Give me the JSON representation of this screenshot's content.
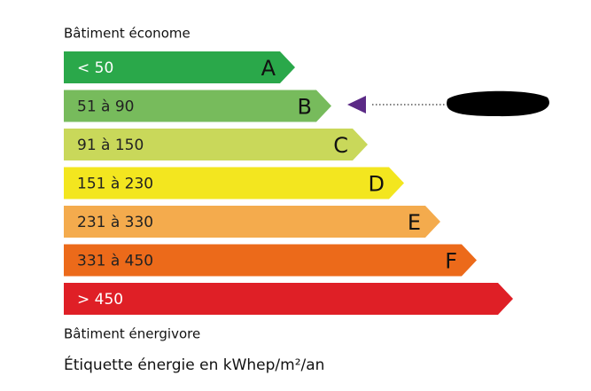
{
  "header": {
    "title": "Bâtiment économe"
  },
  "bands": [
    {
      "range": "< 50",
      "letter": "A",
      "color": "#2aa84a"
    },
    {
      "range": "51 à 90",
      "letter": "B",
      "color": "#77bb5c"
    },
    {
      "range": "91 à 150",
      "letter": "C",
      "color": "#c9d85a"
    },
    {
      "range": "151 à 230",
      "letter": "D",
      "color": "#f3e61f"
    },
    {
      "range": "231 à 330",
      "letter": "E",
      "color": "#f4ab4d"
    },
    {
      "range": "331 à 450",
      "letter": "F",
      "color": "#ec6a1a"
    },
    {
      "range": "> 450",
      "color": "#df1f26"
    }
  ],
  "footer": {
    "title": "Bâtiment énergivore"
  },
  "caption": "Étiquette énergie en kWhep/m²/an"
}
